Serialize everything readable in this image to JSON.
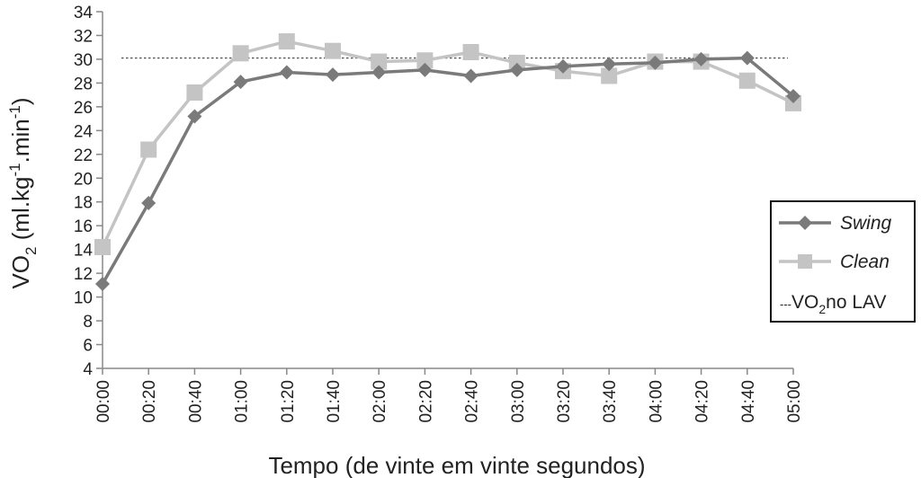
{
  "chart_data": {
    "type": "line",
    "xlabel": "Tempo (de vinte em vinte segundos)",
    "ylabel": {
      "main": "VO",
      "sub": "2",
      "unit_open": " (ml.kg",
      "sup1": "-1",
      "unit_mid": ".min",
      "sup2": "-1",
      "unit_close": ")"
    },
    "ylim": [
      4,
      34
    ],
    "yticks": [
      "4",
      "6",
      "8",
      "10",
      "12",
      "14",
      "16",
      "18",
      "20",
      "22",
      "24",
      "26",
      "28",
      "30",
      "32",
      "34"
    ],
    "categories": [
      "00:00",
      "00:20",
      "00:40",
      "01:00",
      "01:20",
      "01:40",
      "02:00",
      "02:20",
      "02:40",
      "03:00",
      "03:20",
      "03:40",
      "04:00",
      "04:20",
      "04:40",
      "05:00"
    ],
    "series": [
      {
        "name": "Swing",
        "marker": "diamond",
        "color": "#7a7a7a",
        "values": [
          11.1,
          17.9,
          25.2,
          28.1,
          28.9,
          28.7,
          28.9,
          29.1,
          28.6,
          29.1,
          29.4,
          29.6,
          29.7,
          30.0,
          30.1,
          26.9
        ]
      },
      {
        "name": "Clean",
        "marker": "square",
        "color": "#c4c4c4",
        "values": [
          14.2,
          22.4,
          27.2,
          30.5,
          31.5,
          30.7,
          29.8,
          29.9,
          30.6,
          29.7,
          29.0,
          28.6,
          29.8,
          29.8,
          28.2,
          26.3
        ]
      }
    ],
    "reference_line": {
      "value": 30.1,
      "style": "dotted",
      "color": "#555555",
      "legend": {
        "prefix": "---",
        "main": "VO",
        "sub": "2",
        "rest": "no LAV"
      }
    },
    "legend_position": "right",
    "grid": false
  }
}
